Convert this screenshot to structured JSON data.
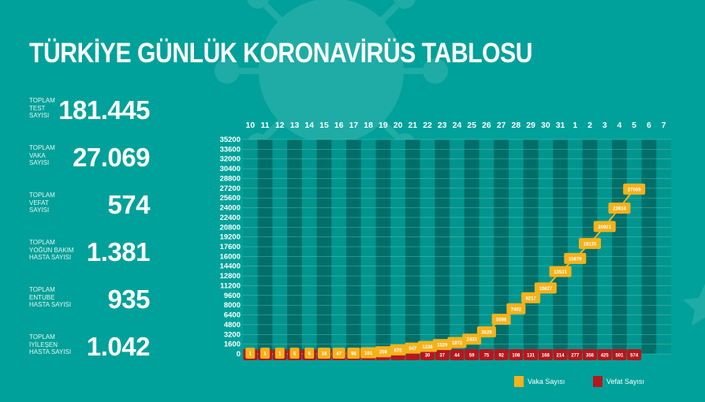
{
  "title": "TÜRKİYE GÜNLÜK KORONAVİRÜS TABLOSU",
  "stats": [
    {
      "label": [
        "TOPLAM",
        "TEST",
        "SAYISI"
      ],
      "value": "181.445"
    },
    {
      "label": [
        "TOPLAM",
        "VAKA",
        "SAYISI"
      ],
      "value": "27.069"
    },
    {
      "label": [
        "TOPLAM",
        "VEFAT",
        "SAYISI"
      ],
      "value": "574"
    },
    {
      "label": [
        "TOPLAM",
        "YOĞUN BAKIM",
        "HASTA SAYISI"
      ],
      "value": "1.381"
    },
    {
      "label": [
        "TOPLAM",
        "ENTUBE",
        "HASTA SAYISI"
      ],
      "value": "935"
    },
    {
      "label": [
        "TOPLAM",
        "İYİLEŞEN",
        "HASTA SAYISI"
      ],
      "value": "1.042"
    }
  ],
  "legend": {
    "cases": "Vaka Sayısı",
    "deaths": "Vefat Sayısı"
  },
  "colors": {
    "background": "#00a19a",
    "cases": "#f5b21b",
    "deaths": "#b5171e",
    "grid_dark": "#006e69",
    "grid_light": "#00958e"
  },
  "chart_data": {
    "type": "line",
    "categories": [
      "10",
      "11",
      "12",
      "13",
      "14",
      "15",
      "16",
      "17",
      "18",
      "19",
      "20",
      "21",
      "22",
      "23",
      "24",
      "25",
      "26",
      "27",
      "28",
      "29",
      "30",
      "31",
      "1",
      "2",
      "3",
      "4",
      "5",
      "6",
      "7"
    ],
    "y_ticks": [
      0,
      1600,
      3200,
      4800,
      6400,
      8000,
      9600,
      11200,
      12800,
      14400,
      16000,
      17600,
      19200,
      20800,
      22400,
      24000,
      25600,
      27200,
      28800,
      30400,
      32000,
      33600,
      35200
    ],
    "ylim": [
      0,
      35200
    ],
    "series": [
      {
        "name": "Vaka Sayısı",
        "values": [
          1,
          1,
          1,
          5,
          6,
          18,
          47,
          98,
          191,
          359,
          670,
          947,
          1236,
          1529,
          1872,
          2433,
          3629,
          5698,
          7402,
          9217,
          10827,
          13531,
          15679,
          18135,
          20921,
          23934,
          27069,
          null,
          null
        ]
      },
      {
        "name": "Vefat Sayısı",
        "values": [
          0,
          0,
          0,
          0,
          0,
          0,
          1,
          1,
          2,
          4,
          9,
          21,
          30,
          37,
          44,
          59,
          75,
          92,
          108,
          131,
          168,
          214,
          277,
          356,
          425,
          501,
          574,
          null,
          null
        ]
      }
    ],
    "legend_position": "bottom-right"
  }
}
